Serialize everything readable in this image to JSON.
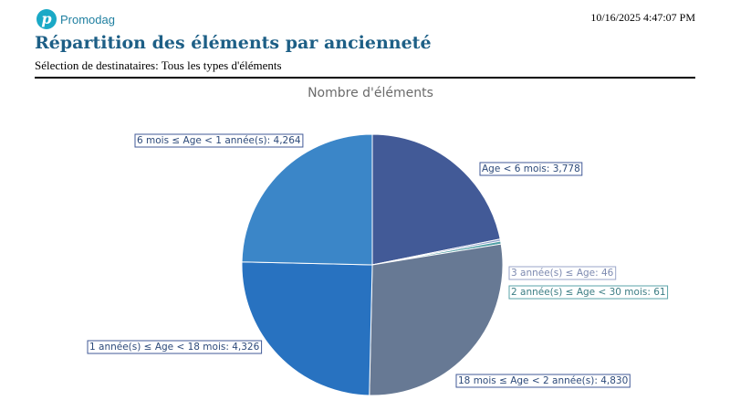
{
  "brand": {
    "name": "Promodag",
    "mark": "p"
  },
  "timestamp": "10/16/2025 4:47:07 PM",
  "report": {
    "title": "Répartition des éléments par ancienneté",
    "subtitle": "Sélection de destinataires: Tous les types d'éléments"
  },
  "colors": {
    "title": "#1d5f86",
    "brand": "#1aa9c6"
  },
  "chart_data": {
    "type": "pie",
    "title": "Nombre d'éléments",
    "legend": "none",
    "slices": [
      {
        "label": "Age < 6 mois",
        "value": 3778,
        "display": "3,778",
        "color": "#425a97"
      },
      {
        "label": "3 année(s) ≤ Age",
        "value": 46,
        "display": "46",
        "color": "#8a9bc8"
      },
      {
        "label": "2 année(s) ≤ Age < 30 mois",
        "value": 61,
        "display": "61",
        "color": "#4f9ea4"
      },
      {
        "label": "18 mois ≤ Age < 2 année(s)",
        "value": 4830,
        "display": "4,830",
        "color": "#677994"
      },
      {
        "label": "1 année(s) ≤ Age < 18 mois",
        "value": 4326,
        "display": "4,326",
        "color": "#2872c0"
      },
      {
        "label": "6 mois ≤ Age < 1 année(s)",
        "value": 4264,
        "display": "4,264",
        "color": "#3b86c8"
      }
    ]
  }
}
